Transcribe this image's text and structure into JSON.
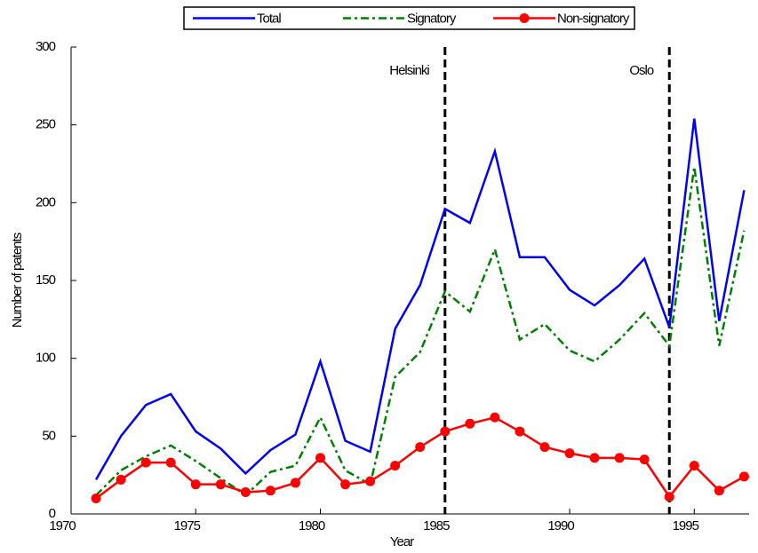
{
  "chart_data": {
    "type": "line",
    "x_label": "Year",
    "y_label": "Number of patents",
    "x": [
      1971,
      1972,
      1973,
      1974,
      1975,
      1976,
      1977,
      1978,
      1979,
      1980,
      1981,
      1982,
      1983,
      1984,
      1985,
      1986,
      1987,
      1988,
      1989,
      1990,
      1991,
      1992,
      1993,
      1994,
      1995,
      1996,
      1997
    ],
    "series": [
      {
        "name": "Total",
        "color": "#0000ff",
        "style": "solid",
        "marker": false,
        "values": [
          22,
          50,
          70,
          77,
          53,
          42,
          26,
          41,
          51,
          98,
          47,
          40,
          119,
          147,
          196,
          187,
          233,
          165,
          165,
          144,
          134,
          147,
          164,
          120,
          254,
          124,
          208
        ]
      },
      {
        "name": "Signatory",
        "color": "#008000",
        "style": "dashdot",
        "marker": false,
        "values": [
          12,
          28,
          37,
          44,
          34,
          23,
          12,
          27,
          31,
          62,
          28,
          19,
          88,
          104,
          143,
          130,
          170,
          112,
          122,
          105,
          98,
          112,
          129,
          108,
          223,
          108,
          182
        ]
      },
      {
        "name": "Non-signatory",
        "color": "#ff0000",
        "style": "solid",
        "marker": true,
        "values": [
          10,
          22,
          33,
          33,
          19,
          19,
          14,
          15,
          20,
          36,
          19,
          21,
          31,
          43,
          53,
          58,
          62,
          53,
          43,
          39,
          36,
          36,
          35,
          11,
          31,
          15,
          24
        ]
      }
    ],
    "xlim": [
      1970,
      1997.2
    ],
    "xticks": [
      1970,
      1975,
      1980,
      1985,
      1990,
      1995
    ],
    "ylim": [
      0,
      300
    ],
    "yticks": [
      0,
      50,
      100,
      150,
      200,
      250,
      300
    ],
    "annotations": [
      {
        "text": "Helsinki",
        "x": 1985
      },
      {
        "text": "Oslo",
        "x": 1994
      }
    ],
    "legend": "top"
  }
}
